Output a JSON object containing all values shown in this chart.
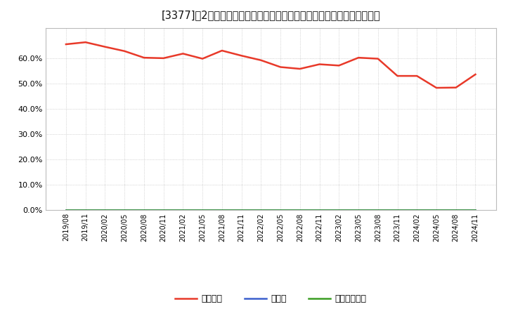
{
  "title": "[3377]　2自己資本、のれん、繰延税金資産の総資産に対する比率の推移",
  "x_labels": [
    "2019/08",
    "2019/11",
    "2020/02",
    "2020/05",
    "2020/08",
    "2020/11",
    "2021/02",
    "2021/05",
    "2021/08",
    "2021/11",
    "2022/02",
    "2022/05",
    "2022/08",
    "2022/11",
    "2023/02",
    "2023/05",
    "2023/08",
    "2023/11",
    "2024/02",
    "2024/05",
    "2024/08",
    "2024/11"
  ],
  "equity_ratio": [
    0.655,
    0.663,
    0.645,
    0.628,
    0.602,
    0.6,
    0.618,
    0.598,
    0.63,
    0.61,
    0.592,
    0.565,
    0.558,
    0.576,
    0.571,
    0.602,
    0.598,
    0.53,
    0.53,
    0.483,
    0.484,
    0.536
  ],
  "noren_ratio": [
    0,
    0,
    0,
    0,
    0,
    0,
    0,
    0,
    0,
    0,
    0,
    0,
    0,
    0,
    0,
    0,
    0,
    0,
    0,
    0,
    0,
    0
  ],
  "deferred_tax_ratio": [
    0,
    0,
    0,
    0,
    0,
    0,
    0,
    0,
    0,
    0,
    0,
    0,
    0,
    0,
    0,
    0,
    0,
    0,
    0,
    0,
    0,
    0
  ],
  "equity_color": "#e83929",
  "noren_color": "#3a5fcd",
  "deferred_color": "#3a9d23",
  "bg_color": "#ffffff",
  "plot_bg_color": "#ffffff",
  "grid_color": "#999999",
  "ylim": [
    0.0,
    0.72
  ],
  "legend_equity": "自己資本",
  "legend_noren": "のれん",
  "legend_deferred": "繰延税金資産"
}
